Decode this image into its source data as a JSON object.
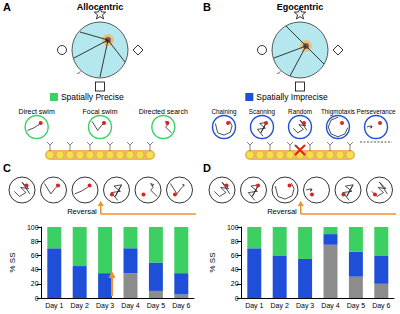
{
  "panels": {
    "A": {
      "letter": "A",
      "title": "Allocentric",
      "category": "Spatially Precise",
      "color": "#3ccf62",
      "strategies": [
        "Direct swim",
        "Focal swim",
        "Directed search"
      ]
    },
    "B": {
      "letter": "B",
      "title": "Egocentric",
      "category": "Spatially Imprecise",
      "color": "#1f4fd8",
      "strategies": [
        "Chaining",
        "Scanning",
        "Random",
        "Thigmotaxis",
        "Perseverance"
      ]
    },
    "C": {
      "letter": "C",
      "annotation": "Reversal"
    },
    "D": {
      "letter": "D",
      "annotation": "Reversal"
    }
  },
  "chart_data": [
    {
      "type": "bar",
      "stacked": true,
      "grid": false,
      "ylabel": "% SS",
      "categories": [
        "Day 1",
        "Day 2",
        "Day 3",
        "Day 4",
        "Day 5",
        "Day 6"
      ],
      "series": [
        {
          "color": "#8c8c8c",
          "values": [
            0,
            0,
            0,
            35,
            10,
            5
          ]
        },
        {
          "color": "#1f4fd8",
          "values": [
            70,
            45,
            35,
            35,
            40,
            30
          ]
        },
        {
          "color": "#3ccf62",
          "values": [
            30,
            55,
            65,
            30,
            50,
            65
          ]
        }
      ],
      "ylim": [
        0,
        100
      ],
      "yticks": [
        0,
        20,
        40,
        60,
        80,
        100
      ]
    },
    {
      "type": "bar",
      "stacked": true,
      "grid": false,
      "ylabel": "% SS",
      "categories": [
        "Day 1",
        "Day 2",
        "Day 3",
        "Day 4",
        "Day 5",
        "Day 6"
      ],
      "series": [
        {
          "color": "#8c8c8c",
          "values": [
            0,
            0,
            0,
            75,
            30,
            20
          ]
        },
        {
          "color": "#1f4fd8",
          "values": [
            70,
            60,
            55,
            15,
            35,
            40
          ]
        },
        {
          "color": "#3ccf62",
          "values": [
            30,
            40,
            45,
            10,
            35,
            40
          ]
        }
      ],
      "ylim": [
        0,
        100
      ],
      "yticks": [
        0,
        20,
        40,
        60,
        80,
        100
      ]
    }
  ]
}
